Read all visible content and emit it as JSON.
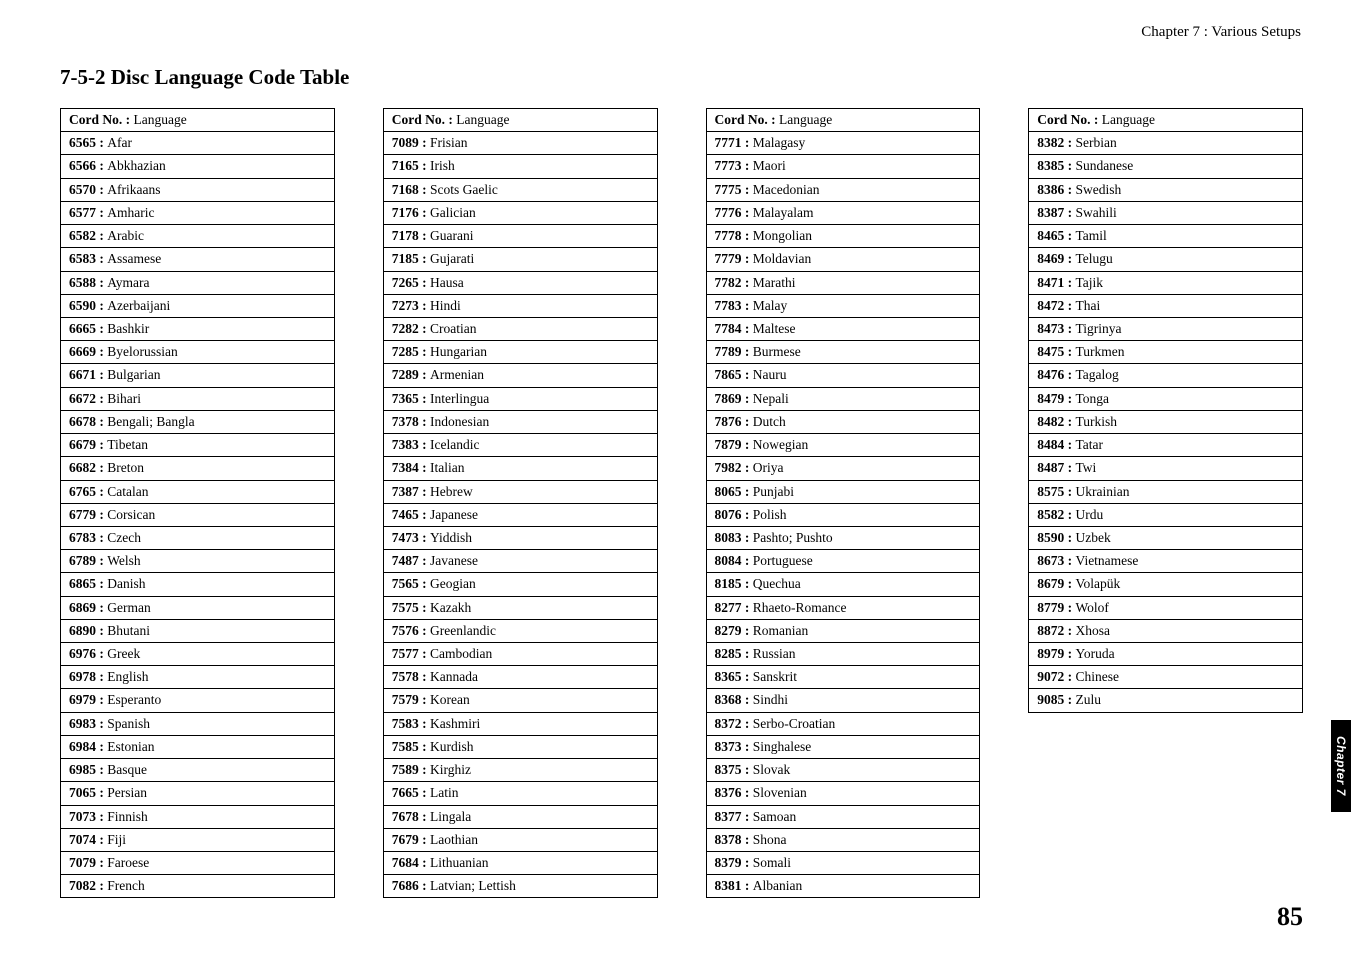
{
  "running_head": "Chapter 7 : Various Setups",
  "section_number": "7-5-2",
  "section_title": "Disc Language Code Table",
  "header_label": "Cord No. : Language",
  "side_tab": "Chapter 7",
  "page_number": "85",
  "columns": [
    [
      {
        "code": "6565 :",
        "lang": "Afar"
      },
      {
        "code": "6566 :",
        "lang": "Abkhazian"
      },
      {
        "code": "6570 :",
        "lang": "Afrikaans"
      },
      {
        "code": "6577 :",
        "lang": "Amharic"
      },
      {
        "code": "6582 :",
        "lang": "Arabic"
      },
      {
        "code": "6583 :",
        "lang": "Assamese"
      },
      {
        "code": "6588 :",
        "lang": "Aymara"
      },
      {
        "code": "6590 :",
        "lang": "Azerbaijani"
      },
      {
        "code": "6665 :",
        "lang": "Bashkir"
      },
      {
        "code": "6669  :",
        "lang": "Byelorussian"
      },
      {
        "code": "6671 :",
        "lang": "Bulgarian"
      },
      {
        "code": "6672 :",
        "lang": "Bihari"
      },
      {
        "code": "6678 :",
        "lang": "Bengali; Bangla"
      },
      {
        "code": "6679 :",
        "lang": "Tibetan"
      },
      {
        "code": "6682 :",
        "lang": "Breton"
      },
      {
        "code": "6765 :",
        "lang": "Catalan"
      },
      {
        "code": "6779 :",
        "lang": "Corsican"
      },
      {
        "code": "6783 :",
        "lang": "Czech"
      },
      {
        "code": "6789 :",
        "lang": "Welsh"
      },
      {
        "code": "6865 :",
        "lang": "Danish"
      },
      {
        "code": "6869 :",
        "lang": "German"
      },
      {
        "code": "6890 :",
        "lang": "Bhutani"
      },
      {
        "code": "6976 :",
        "lang": "Greek"
      },
      {
        "code": "6978 :",
        "lang": "English"
      },
      {
        "code": "6979 :",
        "lang": "Esperanto"
      },
      {
        "code": "6983 :",
        "lang": "Spanish"
      },
      {
        "code": "6984 :",
        "lang": "Estonian"
      },
      {
        "code": "6985 :",
        "lang": "Basque"
      },
      {
        "code": "7065 :",
        "lang": "Persian"
      },
      {
        "code": "7073 :",
        "lang": "Finnish"
      },
      {
        "code": "7074 :",
        "lang": "Fiji"
      },
      {
        "code": "7079 :",
        "lang": "Faroese"
      },
      {
        "code": "7082 :",
        "lang": "French"
      }
    ],
    [
      {
        "code": "7089 :",
        "lang": "Frisian"
      },
      {
        "code": "7165 :",
        "lang": "Irish"
      },
      {
        "code": "7168 :",
        "lang": "Scots Gaelic"
      },
      {
        "code": "7176 :",
        "lang": "Galician"
      },
      {
        "code": "7178 :",
        "lang": "Guarani"
      },
      {
        "code": "7185 :",
        "lang": "Gujarati"
      },
      {
        "code": "7265 :",
        "lang": "Hausa"
      },
      {
        "code": "7273 :",
        "lang": "Hindi"
      },
      {
        "code": "7282 :",
        "lang": "Croatian"
      },
      {
        "code": "7285 :",
        "lang": "Hungarian"
      },
      {
        "code": "7289 :",
        "lang": "Armenian"
      },
      {
        "code": "7365 :",
        "lang": "Interlingua"
      },
      {
        "code": "7378 :",
        "lang": "Indonesian"
      },
      {
        "code": "7383 :",
        "lang": "Icelandic"
      },
      {
        "code": "7384 :",
        "lang": "Italian"
      },
      {
        "code": "7387 :",
        "lang": "Hebrew"
      },
      {
        "code": "7465 :",
        "lang": "Japanese"
      },
      {
        "code": "7473 :",
        "lang": "Yiddish"
      },
      {
        "code": "7487 :",
        "lang": "Javanese"
      },
      {
        "code": "7565 :",
        "lang": "Geogian"
      },
      {
        "code": "7575 :",
        "lang": "Kazakh"
      },
      {
        "code": "7576 :",
        "lang": "Greenlandic"
      },
      {
        "code": "7577 :",
        "lang": "Cambodian"
      },
      {
        "code": "7578 :",
        "lang": "Kannada"
      },
      {
        "code": "7579 :",
        "lang": "Korean"
      },
      {
        "code": "7583 :",
        "lang": "Kashmiri"
      },
      {
        "code": "7585 :",
        "lang": "Kurdish"
      },
      {
        "code": "7589 :",
        "lang": "Kirghiz"
      },
      {
        "code": "7665 :",
        "lang": "Latin"
      },
      {
        "code": "7678 :",
        "lang": "Lingala"
      },
      {
        "code": "7679 :",
        "lang": "Laothian"
      },
      {
        "code": "7684 :",
        "lang": "Lithuanian"
      },
      {
        "code": "7686  :",
        "lang": "Latvian; Lettish"
      }
    ],
    [
      {
        "code": "7771 :",
        "lang": "Malagasy"
      },
      {
        "code": "7773 :",
        "lang": "Maori"
      },
      {
        "code": "7775 :",
        "lang": "Macedonian"
      },
      {
        "code": "7776 :",
        "lang": "Malayalam"
      },
      {
        "code": "7778 :",
        "lang": "Mongolian"
      },
      {
        "code": "7779 :",
        "lang": "Moldavian"
      },
      {
        "code": "7782 :",
        "lang": "Marathi"
      },
      {
        "code": "7783 :",
        "lang": "Malay"
      },
      {
        "code": "7784 :",
        "lang": "Maltese"
      },
      {
        "code": "7789 :",
        "lang": "Burmese"
      },
      {
        "code": "7865 :",
        "lang": "Nauru"
      },
      {
        "code": "7869 :",
        "lang": "Nepali"
      },
      {
        "code": "7876 :",
        "lang": "Dutch"
      },
      {
        "code": "7879 :",
        "lang": "Nowegian"
      },
      {
        "code": "7982 :",
        "lang": "Oriya"
      },
      {
        "code": "8065 :",
        "lang": "Punjabi"
      },
      {
        "code": "8076 :",
        "lang": "Polish"
      },
      {
        "code": "8083 :",
        "lang": "Pashto; Pushto"
      },
      {
        "code": "8084 :",
        "lang": "Portuguese"
      },
      {
        "code": "8185 :",
        "lang": "Quechua"
      },
      {
        "code": "8277 :",
        "lang": "Rhaeto-Romance"
      },
      {
        "code": "8279 :",
        "lang": "Romanian"
      },
      {
        "code": "8285 :",
        "lang": "Russian"
      },
      {
        "code": "8365 :",
        "lang": "Sanskrit"
      },
      {
        "code": "8368 :",
        "lang": "Sindhi"
      },
      {
        "code": "8372 :",
        "lang": "Serbo-Croatian"
      },
      {
        "code": "8373 :",
        "lang": "Singhalese"
      },
      {
        "code": "8375 :",
        "lang": "Slovak"
      },
      {
        "code": "8376 :",
        "lang": "Slovenian"
      },
      {
        "code": "8377 :",
        "lang": "Samoan"
      },
      {
        "code": "8378 :",
        "lang": "Shona"
      },
      {
        "code": "8379 :",
        "lang": "Somali"
      },
      {
        "code": "8381 :",
        "lang": "Albanian"
      }
    ],
    [
      {
        "code": "8382 :",
        "lang": "Serbian"
      },
      {
        "code": "8385 :",
        "lang": "Sundanese"
      },
      {
        "code": "8386 :",
        "lang": "Swedish"
      },
      {
        "code": "8387 :",
        "lang": "Swahili"
      },
      {
        "code": "8465 :",
        "lang": "Tamil"
      },
      {
        "code": "8469 :",
        "lang": "Telugu"
      },
      {
        "code": "8471 :",
        "lang": "Tajik"
      },
      {
        "code": "8472 :",
        "lang": "Thai"
      },
      {
        "code": "8473 :",
        "lang": "Tigrinya"
      },
      {
        "code": "8475 :",
        "lang": "Turkmen"
      },
      {
        "code": "8476 :",
        "lang": "Tagalog"
      },
      {
        "code": "8479 :",
        "lang": "Tonga"
      },
      {
        "code": "8482 :",
        "lang": "Turkish"
      },
      {
        "code": "8484 :",
        "lang": "Tatar"
      },
      {
        "code": "8487 :",
        "lang": "Twi"
      },
      {
        "code": "8575 :",
        "lang": "Ukrainian"
      },
      {
        "code": "8582 :",
        "lang": "Urdu"
      },
      {
        "code": "8590 :",
        "lang": "Uzbek"
      },
      {
        "code": "8673 :",
        "lang": "Vietnamese"
      },
      {
        "code": "8679 :",
        "lang": "Volapük"
      },
      {
        "code": "8779 :",
        "lang": "Wolof"
      },
      {
        "code": "8872 :",
        "lang": "Xhosa"
      },
      {
        "code": "8979 :",
        "lang": "Yoruda"
      },
      {
        "code": "9072 :",
        "lang": "Chinese"
      },
      {
        "code": "9085 :",
        "lang": "Zulu"
      }
    ]
  ]
}
